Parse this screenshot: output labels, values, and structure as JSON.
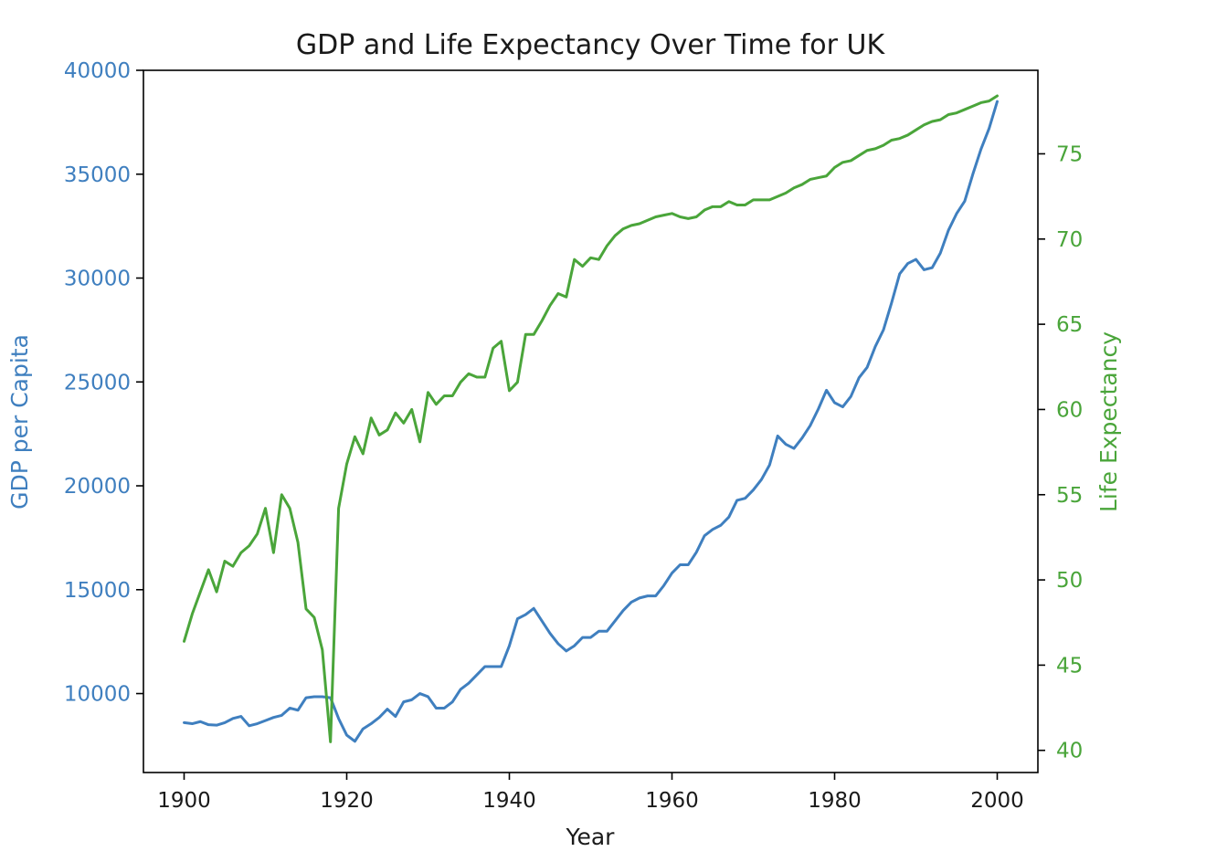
{
  "colors": {
    "gdp": "#3f7fbf",
    "life": "#4aa53a",
    "axis": "#000000",
    "text": "#1a1a1a"
  },
  "chart_data": {
    "type": "line",
    "title": "GDP and Life Expectancy Over Time for UK",
    "xlabel": "Year",
    "xlim": [
      1895,
      2005
    ],
    "x_ticks": [
      1900,
      1920,
      1940,
      1960,
      1980,
      2000
    ],
    "grid": false,
    "legend": "none",
    "axes": {
      "left": {
        "label": "GDP per Capita",
        "ylim": [
          6200,
          40000
        ],
        "ticks": [
          10000,
          15000,
          20000,
          25000,
          30000,
          35000,
          40000
        ]
      },
      "right": {
        "label": "Life Expectancy",
        "ylim": [
          38.7,
          79.9
        ],
        "ticks": [
          40,
          45,
          50,
          55,
          60,
          65,
          70,
          75
        ]
      }
    },
    "x": [
      1900,
      1901,
      1902,
      1903,
      1904,
      1905,
      1906,
      1907,
      1908,
      1909,
      1910,
      1911,
      1912,
      1913,
      1914,
      1915,
      1916,
      1917,
      1918,
      1919,
      1920,
      1921,
      1922,
      1923,
      1924,
      1925,
      1926,
      1927,
      1928,
      1929,
      1930,
      1931,
      1932,
      1933,
      1934,
      1935,
      1936,
      1937,
      1938,
      1939,
      1940,
      1941,
      1942,
      1943,
      1944,
      1945,
      1946,
      1947,
      1948,
      1949,
      1950,
      1951,
      1952,
      1953,
      1954,
      1955,
      1956,
      1957,
      1958,
      1959,
      1960,
      1961,
      1962,
      1963,
      1964,
      1965,
      1966,
      1967,
      1968,
      1969,
      1970,
      1971,
      1972,
      1973,
      1974,
      1975,
      1976,
      1977,
      1978,
      1979,
      1980,
      1981,
      1982,
      1983,
      1984,
      1985,
      1986,
      1987,
      1988,
      1989,
      1990,
      1991,
      1992,
      1993,
      1994,
      1995,
      1996,
      1997,
      1998,
      1999,
      2000
    ],
    "series": [
      {
        "name": "GDP per Capita",
        "axis": "left",
        "values": [
          8600,
          8550,
          8650,
          8500,
          8480,
          8600,
          8800,
          8900,
          8450,
          8550,
          8700,
          8850,
          8950,
          9300,
          9200,
          9800,
          9850,
          9850,
          9800,
          8800,
          8000,
          7700,
          8300,
          8550,
          8850,
          9250,
          8900,
          9600,
          9700,
          10000,
          9850,
          9300,
          9300,
          9600,
          10200,
          10500,
          10900,
          11300,
          11300,
          11300,
          12300,
          13600,
          13800,
          14100,
          13500,
          12900,
          12400,
          12050,
          12300,
          12700,
          12700,
          13000,
          13000,
          13500,
          14000,
          14400,
          14600,
          14700,
          14700,
          15200,
          15800,
          16200,
          16200,
          16800,
          17600,
          17900,
          18100,
          18500,
          19300,
          19400,
          19800,
          20300,
          21000,
          22400,
          22000,
          21800,
          22300,
          22900,
          23700,
          24600,
          24000,
          23800,
          24300,
          25200,
          25700,
          26700,
          27500,
          28800,
          30200,
          30700,
          30900,
          30400,
          30500,
          31200,
          32300,
          33100,
          33700,
          35000,
          36200,
          37200,
          38500
        ]
      },
      {
        "name": "Life Expectancy",
        "axis": "right",
        "values": [
          46.4,
          48.0,
          49.3,
          50.6,
          49.3,
          51.1,
          50.8,
          51.6,
          52.0,
          52.7,
          54.2,
          51.6,
          55.0,
          54.2,
          52.2,
          48.3,
          47.8,
          45.9,
          40.5,
          54.2,
          56.8,
          58.4,
          57.4,
          59.5,
          58.5,
          58.8,
          59.8,
          59.2,
          60.0,
          58.1,
          61.0,
          60.3,
          60.8,
          60.8,
          61.6,
          62.1,
          61.9,
          61.9,
          63.6,
          64.0,
          61.1,
          61.6,
          64.4,
          64.4,
          65.2,
          66.1,
          66.8,
          66.6,
          68.8,
          68.4,
          68.9,
          68.8,
          69.6,
          70.2,
          70.6,
          70.8,
          70.9,
          71.1,
          71.3,
          71.4,
          71.5,
          71.3,
          71.2,
          71.3,
          71.7,
          71.9,
          71.9,
          72.2,
          72.0,
          72.0,
          72.3,
          72.3,
          72.3,
          72.5,
          72.7,
          73.0,
          73.2,
          73.5,
          73.6,
          73.7,
          74.2,
          74.5,
          74.6,
          74.9,
          75.2,
          75.3,
          75.5,
          75.8,
          75.9,
          76.1,
          76.4,
          76.7,
          76.9,
          77.0,
          77.3,
          77.4,
          77.6,
          77.8,
          78.0,
          78.1,
          78.4
        ]
      }
    ]
  }
}
